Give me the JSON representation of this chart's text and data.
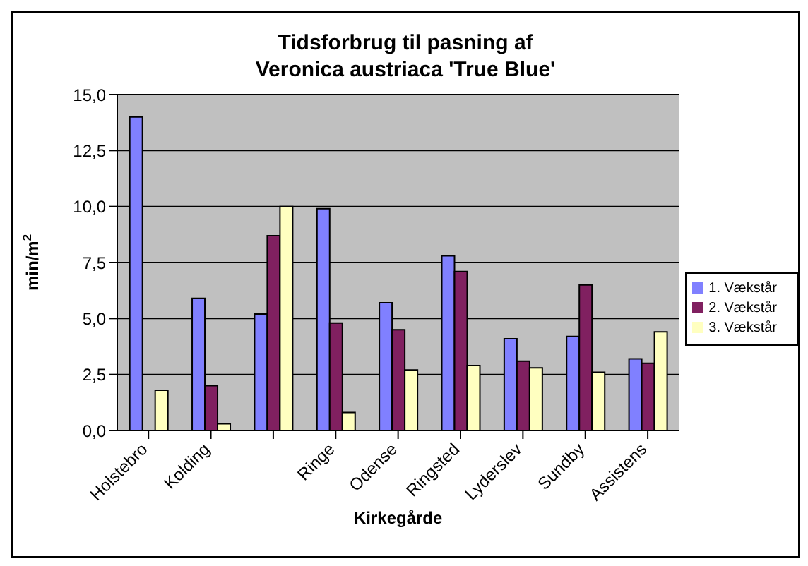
{
  "chart_data": {
    "type": "bar",
    "title": "Tidsforbrug til pasning af\nVeronica austriaca 'True Blue'",
    "xlabel": "Kirkegårde",
    "ylabel": "min/m$^{2}$",
    "categories": [
      "Holstebro",
      "Kolding",
      null,
      "Ringe",
      "Odense",
      "Ringsted",
      "Lyderslev",
      "Sundby",
      "Assistens"
    ],
    "series": [
      {
        "name": "1. Vækstår",
        "color": "#8080ff",
        "values": [
          14.0,
          5.9,
          5.2,
          9.9,
          5.7,
          7.8,
          4.1,
          4.2,
          3.2
        ]
      },
      {
        "name": "2. Vækstår",
        "color": "#802060",
        "values": [
          null,
          2.0,
          8.7,
          4.8,
          4.5,
          7.1,
          3.1,
          6.5,
          3.0
        ]
      },
      {
        "name": "3. Vækstår",
        "color": "#ffffc0",
        "values": [
          1.8,
          0.3,
          10.0,
          0.8,
          2.7,
          2.9,
          2.8,
          2.6,
          4.4
        ]
      }
    ],
    "ylim": [
      0,
      15
    ],
    "yticks": [
      {
        "value": 0,
        "label": "0,0"
      },
      {
        "value": 2.5,
        "label": "2,5"
      },
      {
        "value": 5,
        "label": "5,0"
      },
      {
        "value": 7.5,
        "label": "7,5"
      },
      {
        "value": 10,
        "label": "10,0"
      },
      {
        "value": 12.5,
        "label": "12,5"
      },
      {
        "value": 15,
        "label": "15,0"
      }
    ],
    "grid": "y",
    "legend": "right"
  }
}
